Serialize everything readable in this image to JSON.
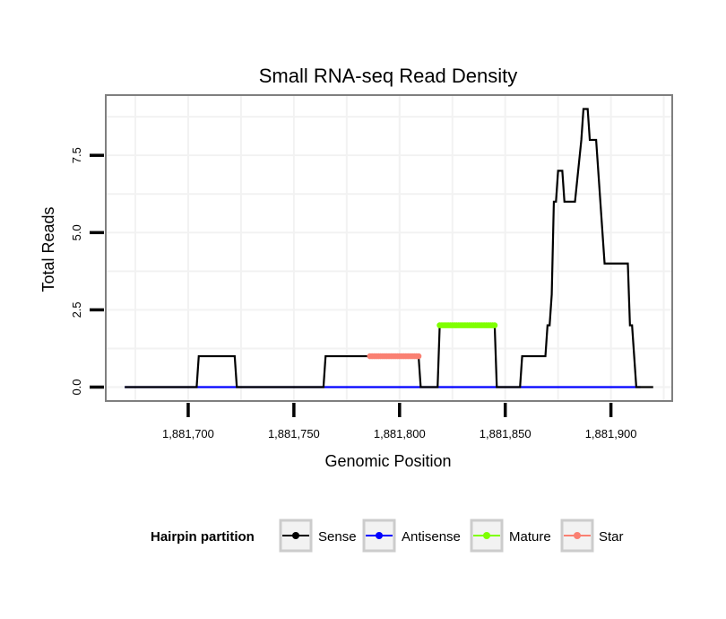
{
  "chart_data": {
    "type": "line",
    "title": "Small RNA-seq Read Density",
    "xlabel": "Genomic Position",
    "ylabel": "Total Reads",
    "xlim": [
      1881661,
      1881929
    ],
    "ylim": [
      -0.45,
      9.45
    ],
    "x_ticks": [
      1881700,
      1881750,
      1881800,
      1881850,
      1881900
    ],
    "x_tick_labels": [
      "1,881,700",
      "1,881,750",
      "1,881,800",
      "1,881,850",
      "1,881,900"
    ],
    "y_ticks": [
      0,
      2.5,
      5,
      7.5
    ],
    "y_tick_labels": [
      "0.0",
      "2.5",
      "5.0",
      "7.5"
    ],
    "grid": true,
    "legend": {
      "title": "Hairpin partition",
      "position": "bottom",
      "entries": [
        {
          "name": "Sense",
          "color": "#000000"
        },
        {
          "name": "Antisense",
          "color": "#0000ff"
        },
        {
          "name": "Mature",
          "color": "#7fff00"
        },
        {
          "name": "Star",
          "color": "#fa8072"
        }
      ]
    },
    "series": [
      {
        "name": "Sense",
        "color": "#000000",
        "points": [
          [
            1881670,
            0
          ],
          [
            1881704,
            0
          ],
          [
            1881705,
            1
          ],
          [
            1881722,
            1
          ],
          [
            1881723,
            0
          ],
          [
            1881764,
            0
          ],
          [
            1881765,
            1
          ],
          [
            1881809,
            1
          ],
          [
            1881810,
            0
          ],
          [
            1881818,
            0
          ],
          [
            1881819,
            2
          ],
          [
            1881845,
            2
          ],
          [
            1881846,
            0
          ],
          [
            1881857,
            0
          ],
          [
            1881858,
            1
          ],
          [
            1881869,
            1
          ],
          [
            1881870,
            2
          ],
          [
            1881871,
            2
          ],
          [
            1881872,
            3
          ],
          [
            1881873,
            6
          ],
          [
            1881874,
            6
          ],
          [
            1881875,
            7
          ],
          [
            1881877,
            7
          ],
          [
            1881878,
            6
          ],
          [
            1881883,
            6
          ],
          [
            1881886,
            8
          ],
          [
            1881887,
            9
          ],
          [
            1881889,
            9
          ],
          [
            1881890,
            8
          ],
          [
            1881893,
            8
          ],
          [
            1881895,
            6
          ],
          [
            1881896,
            5
          ],
          [
            1881897,
            4
          ],
          [
            1881908,
            4
          ],
          [
            1881909,
            2
          ],
          [
            1881910,
            2
          ],
          [
            1881911,
            1
          ],
          [
            1881912,
            0
          ],
          [
            1881920,
            0
          ]
        ]
      },
      {
        "name": "Antisense",
        "color": "#0000ff",
        "points": [
          [
            1881670,
            0
          ],
          [
            1881914,
            0
          ]
        ]
      },
      {
        "name": "Mature",
        "color": "#7fff00",
        "points": [
          [
            1881819,
            2
          ],
          [
            1881820,
            2
          ],
          [
            1881821,
            2
          ],
          [
            1881822,
            2
          ],
          [
            1881823,
            2
          ],
          [
            1881824,
            2
          ],
          [
            1881825,
            2
          ],
          [
            1881826,
            2
          ],
          [
            1881827,
            2
          ],
          [
            1881828,
            2
          ],
          [
            1881829,
            2
          ],
          [
            1881830,
            2
          ],
          [
            1881831,
            2
          ],
          [
            1881832,
            2
          ],
          [
            1881833,
            2
          ],
          [
            1881834,
            2
          ],
          [
            1881835,
            2
          ],
          [
            1881836,
            2
          ],
          [
            1881837,
            2
          ],
          [
            1881838,
            2
          ],
          [
            1881839,
            2
          ],
          [
            1881840,
            2
          ],
          [
            1881841,
            2
          ],
          [
            1881842,
            2
          ],
          [
            1881843,
            2
          ],
          [
            1881844,
            2
          ],
          [
            1881845,
            2
          ]
        ]
      },
      {
        "name": "Star",
        "color": "#fa8072",
        "points": [
          [
            1881786,
            1
          ],
          [
            1881787,
            1
          ],
          [
            1881788,
            1
          ],
          [
            1881789,
            1
          ],
          [
            1881790,
            1
          ],
          [
            1881791,
            1
          ],
          [
            1881792,
            1
          ],
          [
            1881793,
            1
          ],
          [
            1881794,
            1
          ],
          [
            1881795,
            1
          ],
          [
            1881796,
            1
          ],
          [
            1881797,
            1
          ],
          [
            1881798,
            1
          ],
          [
            1881799,
            1
          ],
          [
            1881800,
            1
          ],
          [
            1881801,
            1
          ],
          [
            1881802,
            1
          ],
          [
            1881803,
            1
          ],
          [
            1881804,
            1
          ],
          [
            1881805,
            1
          ],
          [
            1881806,
            1
          ],
          [
            1881807,
            1
          ],
          [
            1881808,
            1
          ],
          [
            1881809,
            1
          ]
        ]
      }
    ]
  }
}
